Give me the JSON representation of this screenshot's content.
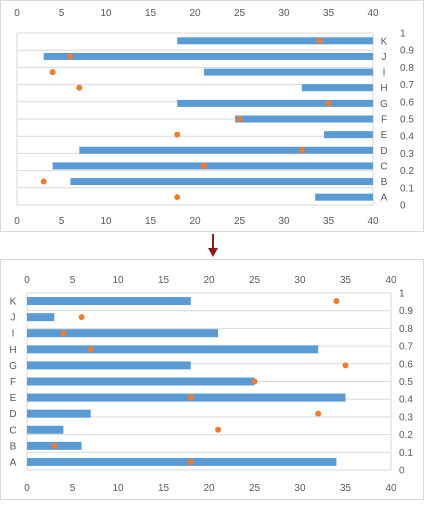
{
  "colors": {
    "bar": "#5b9bd5",
    "point": "#ed7d31",
    "grid": "#d9d9d9",
    "arrow": "#8b1a1a",
    "text": "#595959"
  },
  "chart_data": [
    {
      "type": "bar",
      "orientation": "horizontal",
      "description_of_layout": "",
      "categories": [
        "A",
        "B",
        "C",
        "D",
        "E",
        "F",
        "G",
        "H",
        "I",
        "J",
        "K"
      ],
      "bar_start": [
        33.5,
        6,
        4,
        7,
        34.5,
        24.5,
        18,
        32,
        21,
        3,
        18
      ],
      "bar_end": [
        40,
        40,
        40,
        40,
        40,
        40,
        40,
        40,
        40,
        40,
        40
      ],
      "dots_x": [
        18,
        3,
        21,
        32,
        18,
        25,
        35,
        7,
        4,
        6,
        34
      ],
      "x_ticks": [
        "0",
        "5",
        "10",
        "15",
        "20",
        "25",
        "30",
        "35",
        "40"
      ],
      "xlim": [
        0,
        40
      ],
      "secondary_y_ticks": [
        "0",
        "0.1",
        "0.2",
        "0.3",
        "0.4",
        "0.5",
        "0.6",
        "0.7",
        "0.8",
        "0.9",
        "1"
      ],
      "secondary_ylim": [
        0,
        1
      ],
      "category_labels_position": "right",
      "x_axis_labels": "top and bottom",
      "grid": true
    },
    {
      "type": "bar",
      "orientation": "horizontal",
      "categories": [
        "A",
        "B",
        "C",
        "D",
        "E",
        "F",
        "G",
        "H",
        "I",
        "J",
        "K"
      ],
      "bar_start": [
        0,
        0,
        0,
        0,
        0,
        0,
        0,
        0,
        0,
        0,
        0
      ],
      "bar_end": [
        34,
        6,
        4,
        7,
        35,
        25,
        18,
        32,
        21,
        3,
        18
      ],
      "dots_x": [
        18,
        3,
        21,
        32,
        18,
        25,
        35,
        7,
        4,
        6,
        34
      ],
      "x_ticks": [
        "0",
        "5",
        "10",
        "15",
        "20",
        "25",
        "30",
        "35",
        "40"
      ],
      "xlim": [
        0,
        40
      ],
      "secondary_y_ticks": [
        "0",
        "0.1",
        "0.2",
        "0.3",
        "0.4",
        "0.5",
        "0.6",
        "0.7",
        "0.8",
        "0.9",
        "1"
      ],
      "secondary_ylim": [
        0,
        1
      ],
      "category_labels_position": "left",
      "x_axis_labels": "top and bottom",
      "grid": true
    }
  ]
}
